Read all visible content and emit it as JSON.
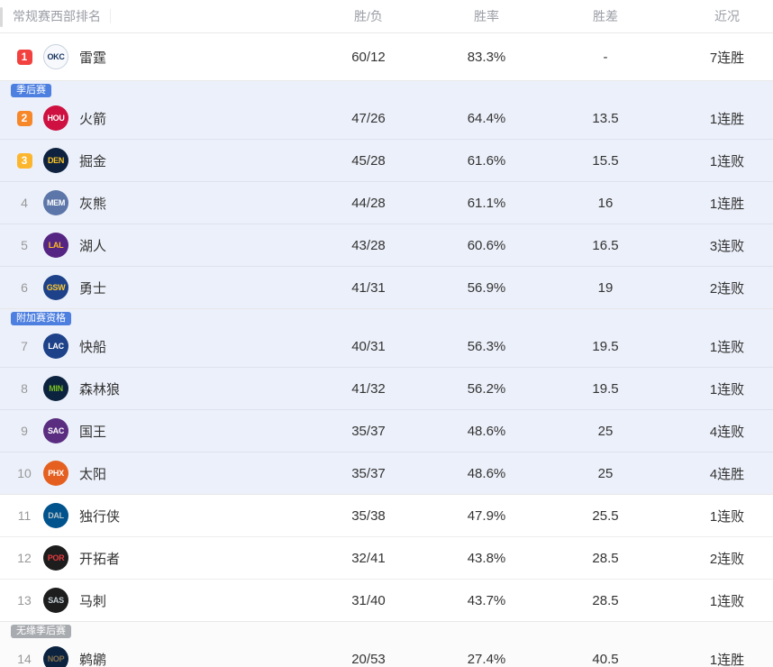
{
  "header": {
    "title": "常规赛西部排名",
    "columns": [
      "胜/负",
      "胜率",
      "胜差",
      "近况"
    ]
  },
  "rank_badge_colors": {
    "1": "#f2413e",
    "2": "#f7882a",
    "3": "#fcb62e"
  },
  "tag_colors": {
    "playoff_blue": "#4d7fe0",
    "missed_gray": "#a8abaf"
  },
  "sections": [
    {
      "tag": null,
      "bg": "#ffffff",
      "plain": true,
      "divided": false,
      "tall": true,
      "rows": [
        {
          "rank": 1,
          "team": "雷霆",
          "logo": {
            "abbr": "OKC",
            "bg": "#f7f9fc",
            "fg": "#16335c",
            "border": "#c9d2e0"
          },
          "record": "60/12",
          "win_pct": "83.3%",
          "gb": "-",
          "streak": "7连胜"
        }
      ]
    },
    {
      "tag": "季后赛",
      "tag_color": "#4d7fe0",
      "bg": "#ecf0fa",
      "plain": false,
      "divided": true,
      "tall": false,
      "rows": [
        {
          "rank": 2,
          "team": "火箭",
          "logo": {
            "abbr": "HOU",
            "bg": "#ce1141",
            "fg": "#ffffff"
          },
          "record": "47/26",
          "win_pct": "64.4%",
          "gb": "13.5",
          "streak": "1连胜"
        },
        {
          "rank": 3,
          "team": "掘金",
          "logo": {
            "abbr": "DEN",
            "bg": "#0e2240",
            "fg": "#fec524"
          },
          "record": "45/28",
          "win_pct": "61.6%",
          "gb": "15.5",
          "streak": "1连败"
        },
        {
          "rank": 4,
          "team": "灰熊",
          "logo": {
            "abbr": "MEM",
            "bg": "#5d76a9",
            "fg": "#ffffff"
          },
          "record": "44/28",
          "win_pct": "61.1%",
          "gb": "16",
          "streak": "1连胜"
        },
        {
          "rank": 5,
          "team": "湖人",
          "logo": {
            "abbr": "LAL",
            "bg": "#552583",
            "fg": "#fdb927"
          },
          "record": "43/28",
          "win_pct": "60.6%",
          "gb": "16.5",
          "streak": "3连败"
        },
        {
          "rank": 6,
          "team": "勇士",
          "logo": {
            "abbr": "GSW",
            "bg": "#1d428a",
            "fg": "#ffc72c"
          },
          "record": "41/31",
          "win_pct": "56.9%",
          "gb": "19",
          "streak": "2连败"
        }
      ]
    },
    {
      "tag": "附加赛资格",
      "tag_color": "#4d7fe0",
      "bg": "#ecf0fa",
      "plain": false,
      "divided": true,
      "tall": false,
      "rows": [
        {
          "rank": 7,
          "team": "快船",
          "logo": {
            "abbr": "LAC",
            "bg": "#1d428a",
            "fg": "#ffffff"
          },
          "record": "40/31",
          "win_pct": "56.3%",
          "gb": "19.5",
          "streak": "1连败"
        },
        {
          "rank": 8,
          "team": "森林狼",
          "logo": {
            "abbr": "MIN",
            "bg": "#0c2340",
            "fg": "#78be20"
          },
          "record": "41/32",
          "win_pct": "56.2%",
          "gb": "19.5",
          "streak": "1连败"
        },
        {
          "rank": 9,
          "team": "国王",
          "logo": {
            "abbr": "SAC",
            "bg": "#5a2d81",
            "fg": "#ffffff"
          },
          "record": "35/37",
          "win_pct": "48.6%",
          "gb": "25",
          "streak": "4连败"
        },
        {
          "rank": 10,
          "team": "太阳",
          "logo": {
            "abbr": "PHX",
            "bg": "#e56020",
            "fg": "#ffffff"
          },
          "record": "35/37",
          "win_pct": "48.6%",
          "gb": "25",
          "streak": "4连胜"
        }
      ]
    },
    {
      "tag": null,
      "bg": "#ffffff",
      "plain": true,
      "divided": true,
      "tall": false,
      "rows": [
        {
          "rank": 11,
          "team": "独行侠",
          "logo": {
            "abbr": "DAL",
            "bg": "#00538c",
            "fg": "#b8c4ca"
          },
          "record": "35/38",
          "win_pct": "47.9%",
          "gb": "25.5",
          "streak": "1连败"
        },
        {
          "rank": 12,
          "team": "开拓者",
          "logo": {
            "abbr": "POR",
            "bg": "#1d1d1d",
            "fg": "#e03a3e"
          },
          "record": "32/41",
          "win_pct": "43.8%",
          "gb": "28.5",
          "streak": "2连败"
        },
        {
          "rank": 13,
          "team": "马刺",
          "logo": {
            "abbr": "SAS",
            "bg": "#1d1d1d",
            "fg": "#c4ced4"
          },
          "record": "31/40",
          "win_pct": "43.7%",
          "gb": "28.5",
          "streak": "1连败"
        }
      ]
    },
    {
      "tag": "无缘季后赛",
      "tag_color": "#a8abaf",
      "bg": "#fbfbfc",
      "plain": true,
      "divided": true,
      "tall": false,
      "rows": [
        {
          "rank": 14,
          "team": "鹈鹕",
          "logo": {
            "abbr": "NOP",
            "bg": "#0c2340",
            "fg": "#85714d"
          },
          "record": "20/53",
          "win_pct": "27.4%",
          "gb": "40.5",
          "streak": "1连胜"
        }
      ]
    }
  ]
}
